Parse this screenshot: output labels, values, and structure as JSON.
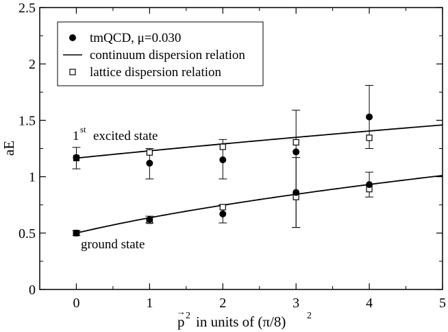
{
  "chart_data": {
    "type": "scatter",
    "title": "",
    "xlabel": {
      "vector": "p",
      "exponent": "2",
      "text": "in units of (π/8)",
      "text_exponent": "2"
    },
    "ylabel": "aE",
    "xlim": [
      -0.5,
      5
    ],
    "ylim": [
      0,
      2.5
    ],
    "xticks": [
      0,
      1,
      2,
      3,
      4,
      5
    ],
    "yticks": [
      0,
      0.5,
      1,
      1.5,
      2,
      2.5
    ],
    "xtick_labels": [
      "0",
      "1",
      "2",
      "3",
      "4",
      "5"
    ],
    "ytick_labels": [
      "0",
      "0.5",
      "1",
      "1.5",
      "2",
      "2.5"
    ],
    "legend": {
      "position": "top-left",
      "entries": [
        {
          "label": "tmQCD, μ=0.030",
          "marker": "filled-circle"
        },
        {
          "label": "continuum dispersion relation",
          "marker": "line"
        },
        {
          "label": "lattice dispersion relation",
          "marker": "open-square"
        }
      ]
    },
    "annotations": [
      {
        "id": "excited",
        "base": "1",
        "superscript": "st",
        "text": "excited state",
        "at": [
          -0.03,
          1.33
        ]
      },
      {
        "id": "ground",
        "text": "ground state",
        "at": [
          0.08,
          0.37
        ]
      }
    ],
    "series": [
      {
        "name": "tmQCD, μ=0.030 (1st excited state)",
        "marker": "filled-circle",
        "points": [
          {
            "x": 0,
            "y": 1.17,
            "err_lo": 1.07,
            "err_hi": 1.26
          },
          {
            "x": 1,
            "y": 1.12,
            "err_lo": 0.98,
            "err_hi": 1.25
          },
          {
            "x": 2,
            "y": 1.15,
            "err_lo": 0.98,
            "err_hi": 1.33
          },
          {
            "x": 3,
            "y": 1.22,
            "err_lo": 0.55,
            "err_hi": 1.59
          },
          {
            "x": 4,
            "y": 1.53,
            "err_lo": 1.25,
            "err_hi": 1.81
          }
        ]
      },
      {
        "name": "tmQCD, μ=0.030 (ground state)",
        "marker": "filled-circle",
        "points": [
          {
            "x": 0,
            "y": 0.5,
            "err_lo": 0.48,
            "err_hi": 0.52
          },
          {
            "x": 1,
            "y": 0.62,
            "err_lo": 0.59,
            "err_hi": 0.65
          },
          {
            "x": 2,
            "y": 0.67,
            "err_lo": 0.59,
            "err_hi": 0.75
          },
          {
            "x": 3,
            "y": 0.86,
            "err_lo": 0.55,
            "err_hi": 1.17
          },
          {
            "x": 4,
            "y": 0.93,
            "err_lo": 0.82,
            "err_hi": 1.04
          }
        ]
      },
      {
        "name": "lattice dispersion relation (1st excited state)",
        "marker": "open-square",
        "points": [
          {
            "x": 0,
            "y": 1.165
          },
          {
            "x": 1,
            "y": 1.215
          },
          {
            "x": 2,
            "y": 1.265
          },
          {
            "x": 3,
            "y": 1.305
          },
          {
            "x": 4,
            "y": 1.345
          }
        ]
      },
      {
        "name": "lattice dispersion relation (ground state)",
        "marker": "open-square",
        "points": [
          {
            "x": 0,
            "y": 0.5
          },
          {
            "x": 1,
            "y": 0.61
          },
          {
            "x": 2,
            "y": 0.73
          },
          {
            "x": 3,
            "y": 0.82
          },
          {
            "x": 4,
            "y": 0.89
          }
        ]
      },
      {
        "name": "continuum dispersion relation (1st excited state)",
        "marker": "line",
        "function": "sqrt(m^2 + x*(pi/8)^2)",
        "mass": 1.165,
        "x_range": [
          0,
          5
        ]
      },
      {
        "name": "continuum dispersion relation (ground state)",
        "marker": "line",
        "function": "sqrt(m^2 + x*(pi/8)^2)",
        "mass": 0.5,
        "x_range": [
          0,
          5
        ]
      }
    ]
  }
}
